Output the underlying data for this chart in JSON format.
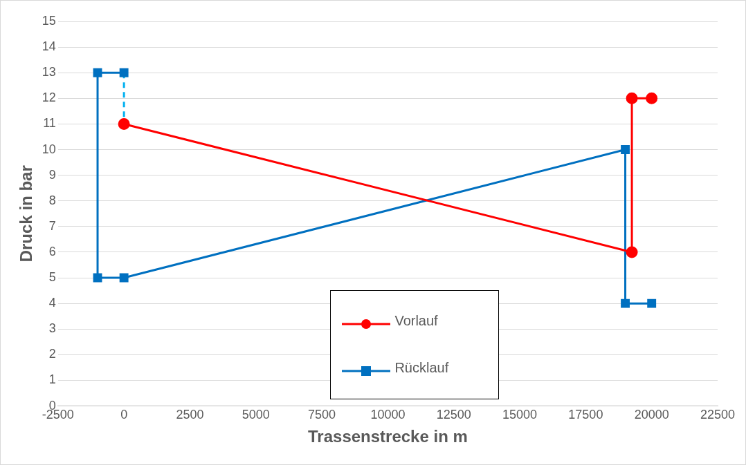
{
  "chart_data": {
    "type": "line",
    "xlabel": "Trassenstrecke in m",
    "ylabel": "Druck in bar",
    "xlim": [
      -2500,
      22500
    ],
    "xticks": [
      -2500,
      0,
      2500,
      5000,
      7500,
      10000,
      12500,
      15000,
      17500,
      20000,
      22500
    ],
    "ylim": [
      0,
      15
    ],
    "yticks": [
      0,
      1,
      2,
      3,
      4,
      5,
      6,
      7,
      8,
      9,
      10,
      11,
      12,
      13,
      14,
      15
    ],
    "grid": "y",
    "legend": "bottom",
    "series": [
      {
        "name": "Vorlauf",
        "color": "#ff0000",
        "marker": "circle",
        "line_style": "solid",
        "x": [
          0,
          19250,
          19250,
          20000
        ],
        "values": [
          11,
          6,
          12,
          12
        ]
      },
      {
        "name": "Rücklauf",
        "color": "#0070c0",
        "marker": "square",
        "line_style": "solid",
        "x": [
          20000,
          19000,
          19000,
          0,
          -1000,
          -1000,
          0
        ],
        "values": [
          4,
          4,
          10,
          5,
          5,
          13,
          13
        ]
      },
      {
        "color": "#00b0f0",
        "marker": "none",
        "line_style": "dashed",
        "x": [
          0,
          0
        ],
        "values": [
          13,
          11
        ]
      }
    ]
  }
}
